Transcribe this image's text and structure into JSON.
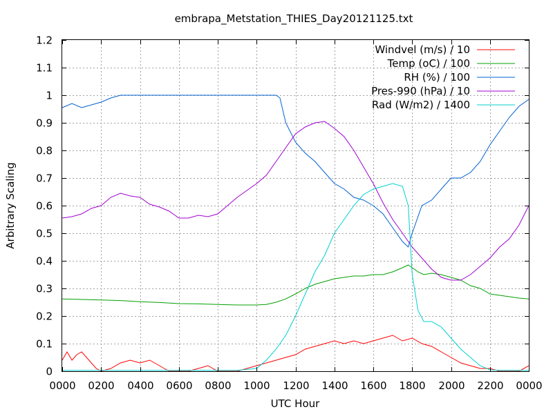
{
  "chart_data": {
    "type": "line",
    "title": "embrapa_Metstation_THIES_Day20121125.txt",
    "xlabel": "UTC Hour",
    "ylabel": "Arbitrary Scaling",
    "xlim": [
      0,
      24
    ],
    "ylim": [
      0,
      1.2
    ],
    "grid": true,
    "legend_position": "top-right",
    "x_ticks": [
      {
        "value": 0,
        "label": "0000"
      },
      {
        "value": 2,
        "label": "0200"
      },
      {
        "value": 4,
        "label": "0400"
      },
      {
        "value": 6,
        "label": "0600"
      },
      {
        "value": 8,
        "label": "0800"
      },
      {
        "value": 10,
        "label": "1000"
      },
      {
        "value": 12,
        "label": "1200"
      },
      {
        "value": 14,
        "label": "1400"
      },
      {
        "value": 16,
        "label": "1600"
      },
      {
        "value": 18,
        "label": "1800"
      },
      {
        "value": 20,
        "label": "2000"
      },
      {
        "value": 22,
        "label": "2200"
      },
      {
        "value": 24,
        "label": "0000"
      }
    ],
    "y_ticks": [
      {
        "value": 0,
        "label": "0"
      },
      {
        "value": 0.1,
        "label": "0.1"
      },
      {
        "value": 0.2,
        "label": "0.2"
      },
      {
        "value": 0.3,
        "label": "0.3"
      },
      {
        "value": 0.4,
        "label": "0.4"
      },
      {
        "value": 0.5,
        "label": "0.5"
      },
      {
        "value": 0.6,
        "label": "0.6"
      },
      {
        "value": 0.7,
        "label": "0.7"
      },
      {
        "value": 0.8,
        "label": "0.8"
      },
      {
        "value": 0.9,
        "label": "0.9"
      },
      {
        "value": 1.0,
        "label": "1"
      },
      {
        "value": 1.1,
        "label": "1.1"
      },
      {
        "value": 1.2,
        "label": "1.2"
      }
    ],
    "series": [
      {
        "name": "Windvel (m/s) / 10",
        "color": "#ff0000",
        "x": [
          0,
          0.25,
          0.5,
          0.75,
          1.0,
          1.25,
          1.5,
          1.75,
          2.0,
          2.5,
          3.0,
          3.5,
          4.0,
          4.5,
          5.0,
          5.5,
          6.0,
          6.5,
          7.0,
          7.5,
          8.0,
          8.5,
          9.0,
          9.5,
          10.0,
          10.5,
          11.0,
          11.5,
          12.0,
          12.5,
          13.0,
          13.5,
          14.0,
          14.5,
          15.0,
          15.5,
          16.0,
          16.5,
          17.0,
          17.5,
          18.0,
          18.5,
          19.0,
          19.5,
          20.0,
          20.5,
          21.0,
          21.5,
          22.0,
          22.5,
          23.0,
          23.5,
          24.0
        ],
        "y": [
          0.04,
          0.07,
          0.04,
          0.06,
          0.07,
          0.05,
          0.03,
          0.01,
          0.0,
          0.01,
          0.03,
          0.04,
          0.03,
          0.04,
          0.02,
          0.0,
          0.0,
          0.0,
          0.01,
          0.02,
          0.0,
          0.0,
          0.0,
          0.01,
          0.02,
          0.03,
          0.04,
          0.05,
          0.06,
          0.08,
          0.09,
          0.1,
          0.11,
          0.1,
          0.11,
          0.1,
          0.11,
          0.12,
          0.13,
          0.11,
          0.12,
          0.1,
          0.09,
          0.07,
          0.05,
          0.03,
          0.02,
          0.01,
          0.01,
          0.0,
          0.0,
          0.0,
          0.02
        ]
      },
      {
        "name": "Temp (oC) / 100",
        "color": "#00a000",
        "x": [
          0,
          1,
          2,
          3,
          4,
          5,
          6,
          7,
          8,
          9,
          10,
          10.5,
          11,
          11.5,
          12,
          12.5,
          13,
          13.5,
          14,
          14.5,
          15,
          15.5,
          16,
          16.5,
          17,
          17.5,
          17.8,
          18,
          18.3,
          18.6,
          19,
          19.5,
          20,
          20.5,
          21,
          21.5,
          22,
          22.5,
          23,
          23.5,
          24
        ],
        "y": [
          0.262,
          0.26,
          0.258,
          0.256,
          0.252,
          0.249,
          0.245,
          0.244,
          0.242,
          0.24,
          0.24,
          0.242,
          0.25,
          0.262,
          0.28,
          0.3,
          0.315,
          0.325,
          0.335,
          0.34,
          0.345,
          0.345,
          0.35,
          0.35,
          0.36,
          0.375,
          0.385,
          0.375,
          0.36,
          0.35,
          0.355,
          0.35,
          0.34,
          0.33,
          0.31,
          0.3,
          0.28,
          0.275,
          0.27,
          0.265,
          0.262
        ]
      },
      {
        "name": "RH (%) / 100",
        "color": "#0060d0",
        "x": [
          0,
          0.5,
          1.0,
          1.5,
          2.0,
          2.5,
          3.0,
          3.5,
          4,
          5,
          6,
          7,
          8,
          9,
          10,
          11,
          11.2,
          11.5,
          12,
          12.5,
          13,
          13.5,
          14,
          14.5,
          15,
          15.5,
          16,
          16.5,
          17,
          17.5,
          17.8,
          18,
          18.5,
          19,
          19.5,
          20,
          20.5,
          21,
          21.5,
          22,
          22.5,
          23,
          23.5,
          24
        ],
        "y": [
          0.955,
          0.97,
          0.955,
          0.965,
          0.975,
          0.99,
          1.0,
          1.0,
          1.0,
          1.0,
          1.0,
          1.0,
          1.0,
          1.0,
          1.0,
          1.0,
          0.99,
          0.9,
          0.83,
          0.79,
          0.76,
          0.72,
          0.68,
          0.66,
          0.63,
          0.62,
          0.6,
          0.57,
          0.52,
          0.47,
          0.45,
          0.5,
          0.6,
          0.62,
          0.66,
          0.7,
          0.7,
          0.72,
          0.76,
          0.82,
          0.87,
          0.92,
          0.96,
          0.985
        ]
      },
      {
        "name": "Pres-990 (hPa) / 10",
        "color": "#a000d0",
        "x": [
          0,
          0.5,
          1.0,
          1.5,
          2.0,
          2.5,
          3.0,
          3.5,
          4.0,
          4.5,
          5.0,
          5.5,
          6.0,
          6.5,
          7.0,
          7.5,
          8.0,
          8.5,
          9.0,
          9.5,
          10.0,
          10.5,
          11.0,
          11.5,
          12.0,
          12.5,
          13.0,
          13.5,
          14.0,
          14.5,
          15.0,
          15.5,
          16.0,
          16.5,
          17.0,
          17.5,
          18.0,
          18.5,
          19.0,
          19.5,
          20.0,
          20.5,
          21.0,
          21.5,
          22.0,
          22.5,
          23.0,
          23.5,
          24.0
        ],
        "y": [
          0.555,
          0.56,
          0.57,
          0.59,
          0.6,
          0.63,
          0.645,
          0.635,
          0.63,
          0.605,
          0.595,
          0.58,
          0.555,
          0.555,
          0.565,
          0.56,
          0.57,
          0.6,
          0.63,
          0.655,
          0.68,
          0.71,
          0.76,
          0.81,
          0.86,
          0.885,
          0.9,
          0.905,
          0.88,
          0.85,
          0.8,
          0.74,
          0.68,
          0.61,
          0.55,
          0.5,
          0.45,
          0.41,
          0.37,
          0.34,
          0.33,
          0.33,
          0.35,
          0.38,
          0.41,
          0.45,
          0.48,
          0.53,
          0.6
        ]
      },
      {
        "name": "Rad (W/m2) / 1400",
        "color": "#00d0d0",
        "x": [
          0,
          1,
          2,
          3,
          4,
          5,
          6,
          7,
          8,
          9,
          10,
          10.5,
          11.0,
          11.5,
          12.0,
          12.5,
          13.0,
          13.5,
          14.0,
          14.5,
          15.0,
          15.5,
          16.0,
          16.5,
          17.0,
          17.5,
          17.8,
          18.0,
          18.3,
          18.6,
          19.0,
          19.5,
          20.0,
          20.5,
          21.0,
          21.5,
          22.0,
          22.5,
          23.0,
          23.5,
          24.0
        ],
        "y": [
          0.003,
          0.003,
          0.003,
          0.003,
          0.003,
          0.003,
          0.003,
          0.003,
          0.003,
          0.003,
          0.01,
          0.04,
          0.08,
          0.13,
          0.2,
          0.28,
          0.36,
          0.42,
          0.5,
          0.55,
          0.6,
          0.64,
          0.66,
          0.67,
          0.68,
          0.67,
          0.6,
          0.35,
          0.22,
          0.18,
          0.18,
          0.16,
          0.12,
          0.08,
          0.05,
          0.02,
          0.005,
          0.003,
          0.003,
          0.003,
          0.003
        ]
      }
    ]
  }
}
